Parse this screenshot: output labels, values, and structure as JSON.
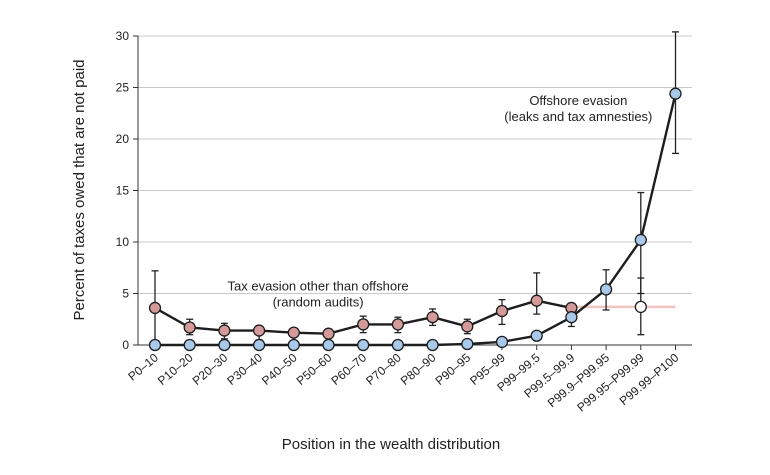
{
  "chart_data": {
    "type": "line",
    "title": "",
    "xlabel": "Position in the wealth distribution",
    "ylabel": "Percent of taxes owed that are not paid",
    "ylim": [
      0,
      30
    ],
    "yticks": [
      0,
      5,
      10,
      15,
      20,
      25,
      30
    ],
    "grid": true,
    "categories": [
      "P0–10",
      "P10–20",
      "P20–30",
      "P30–40",
      "P40–50",
      "P50–60",
      "P60–70",
      "P70–80",
      "P80–90",
      "P90–95",
      "P95–99",
      "P99–99.5",
      "P99.5–99.9",
      "P99.9–P99.95",
      "P99.95–P99.99",
      "P99.99–P100"
    ],
    "series": [
      {
        "name": "",
        "color": "#d49a9a",
        "values": [
          3.6,
          1.7,
          1.4,
          1.4,
          1.2,
          1.1,
          2.0,
          2.0,
          2.7,
          1.8,
          3.3,
          4.3,
          3.6,
          null,
          3.7,
          null
        ],
        "err_low": [
          0.1,
          1.0,
          0.6,
          0.5,
          0.4,
          0.2,
          1.2,
          1.2,
          1.9,
          1.1,
          2.0,
          3.0,
          null,
          null,
          1.0,
          null
        ],
        "err_high": [
          7.2,
          2.5,
          2.1,
          1.8,
          1.5,
          1.3,
          2.8,
          2.7,
          3.5,
          2.5,
          4.4,
          7.0,
          null,
          null,
          6.5,
          null
        ]
      },
      {
        "name": "",
        "color": "#a9c9ea",
        "values": [
          0.0,
          0.0,
          0.0,
          0.0,
          0.0,
          0.0,
          0.0,
          0.0,
          0.0,
          0.1,
          0.3,
          0.9,
          2.7,
          5.4,
          10.2,
          24.4
        ],
        "err_low": [
          null,
          null,
          null,
          null,
          null,
          null,
          null,
          null,
          null,
          null,
          null,
          0.5,
          1.8,
          3.4,
          5.0,
          18.6
        ],
        "err_high": [
          null,
          null,
          null,
          null,
          null,
          null,
          null,
          null,
          null,
          null,
          null,
          1.3,
          3.3,
          7.3,
          14.8,
          30.4
        ]
      }
    ],
    "reference_line": {
      "value": 3.7,
      "from_index": 12,
      "to_index": 15,
      "color": "#f2c4c4"
    },
    "open_marker_index": 14,
    "annotations": [
      {
        "id": "offshore",
        "lines": [
          "Offshore evasion",
          "(leaks and tax amnesties)"
        ],
        "anchor_category": 12.2,
        "anchor_value": 23.3
      },
      {
        "id": "other",
        "lines": [
          "Tax evasion other than offshore",
          "(random audits)"
        ],
        "anchor_category": 4.7,
        "anchor_value": 5.3
      }
    ]
  }
}
